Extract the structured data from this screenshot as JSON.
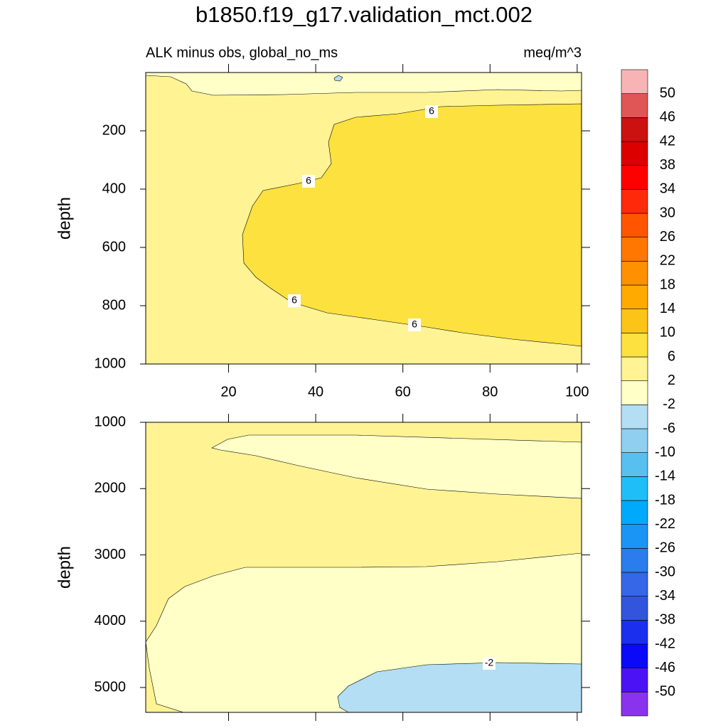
{
  "chart_data": {
    "type": "contour",
    "title": "b1850.f19_g17.validation_mct.002",
    "subtitle_left": "ALK minus obs, global_no_ms",
    "subtitle_right": "meq/m^3",
    "levels": [
      -50,
      -46,
      -42,
      -38,
      -34,
      -30,
      -26,
      -22,
      -18,
      -14,
      -10,
      -6,
      -2,
      2,
      6,
      10,
      14,
      18,
      22,
      26,
      30,
      34,
      38,
      42,
      46,
      50
    ],
    "colors": [
      "#8A33EE",
      "#4A12F4",
      "#0A0AF8",
      "#1A30EE",
      "#3355DD",
      "#3667E6",
      "#2B7CEC",
      "#1A95F5",
      "#00AAFA",
      "#1FBEF9",
      "#57C0EE",
      "#90CFEF",
      "#B3DEF3",
      "#FFFFC8",
      "#FFF394",
      "#FDE13F",
      "#FBC417",
      "#FFAA00",
      "#FF9000",
      "#FF7700",
      "#FF5500",
      "#FF2A0A",
      "#FF0000",
      "#DD0000",
      "#CC1111",
      "#E05555",
      "#F8B4B4"
    ],
    "panels": [
      {
        "ylabel": "depth",
        "ylim": [
          0,
          1000
        ],
        "yticks": [
          200,
          400,
          600,
          800,
          1000
        ],
        "xlim": [
          1,
          101
        ],
        "xticks": [
          20,
          40,
          60,
          80,
          100
        ],
        "contour_labels": [
          6,
          6,
          6,
          6
        ]
      },
      {
        "ylabel": "depth",
        "ylim": [
          1000,
          5375
        ],
        "yticks": [
          1000,
          2000,
          3000,
          4000,
          5000
        ],
        "xlim": [
          1,
          101
        ],
        "contour_labels": [
          -2
        ]
      }
    ]
  }
}
